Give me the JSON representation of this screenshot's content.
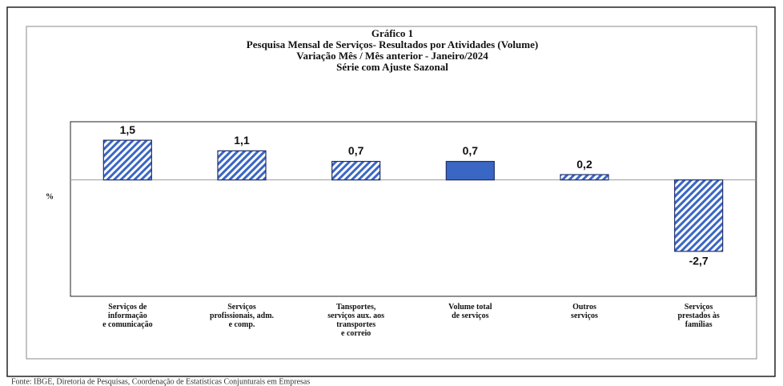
{
  "chart_data": {
    "type": "bar",
    "title": [
      "Gráfico 1",
      "Pesquisa Mensal de Serviços- Resultados por Atividades (Volume)",
      "Variação Mês / Mês anterior - Janeiro/2024",
      "Série com Ajuste Sazonal"
    ],
    "ylabel": "%",
    "categories": [
      "Serviços de\ninformação\ne comunicação",
      "Serviços\nprofissionais, adm.\ne comp.",
      "Tansportes,\nserviços aux. aos\ntransportes\ne correio",
      "Volume total\nde serviços",
      "Outros\nserviços",
      "Serviços\nprestados às\nfamílias"
    ],
    "values": [
      1.5,
      1.1,
      0.7,
      0.7,
      0.2,
      -2.7
    ],
    "value_labels": [
      "1,5",
      "1,1",
      "0,7",
      "0,7",
      "0,2",
      "-2,7"
    ],
    "color": "#3a66c4",
    "hatched": [
      true,
      true,
      true,
      false,
      true,
      true
    ],
    "ylim": [
      -4.4,
      2.2
    ],
    "source": "Fonte: IBGE, Diretoria de Pesquisas, Coordenação de Estatísticas Conjunturais em Empresas"
  }
}
